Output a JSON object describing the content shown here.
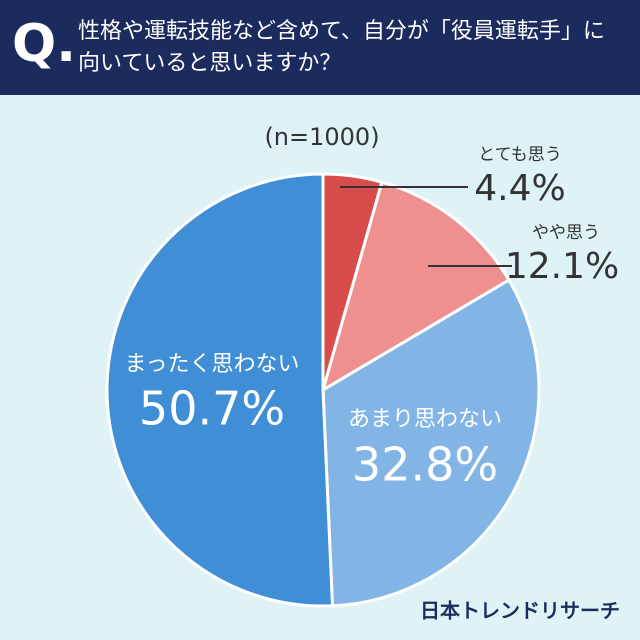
{
  "chart_data": {
    "type": "pie",
    "title": "性格や運転技能など含めて、自分が「役員運転手」に向いていると思いますか？",
    "title_marker": "Q.",
    "subtitle": "(n=1000)",
    "source": "日本トレンドリサーチ",
    "categories": [
      "とても思う",
      "やや思う",
      "あまり思わない",
      "まったく思わない"
    ],
    "values": [
      4.4,
      12.1,
      32.8,
      50.7
    ],
    "value_labels": [
      "4.4%",
      "12.1%",
      "32.8%",
      "50.7%"
    ],
    "colors": [
      "#d94c4c",
      "#ef8f8f",
      "#82b5e6",
      "#3f8ed6"
    ]
  }
}
